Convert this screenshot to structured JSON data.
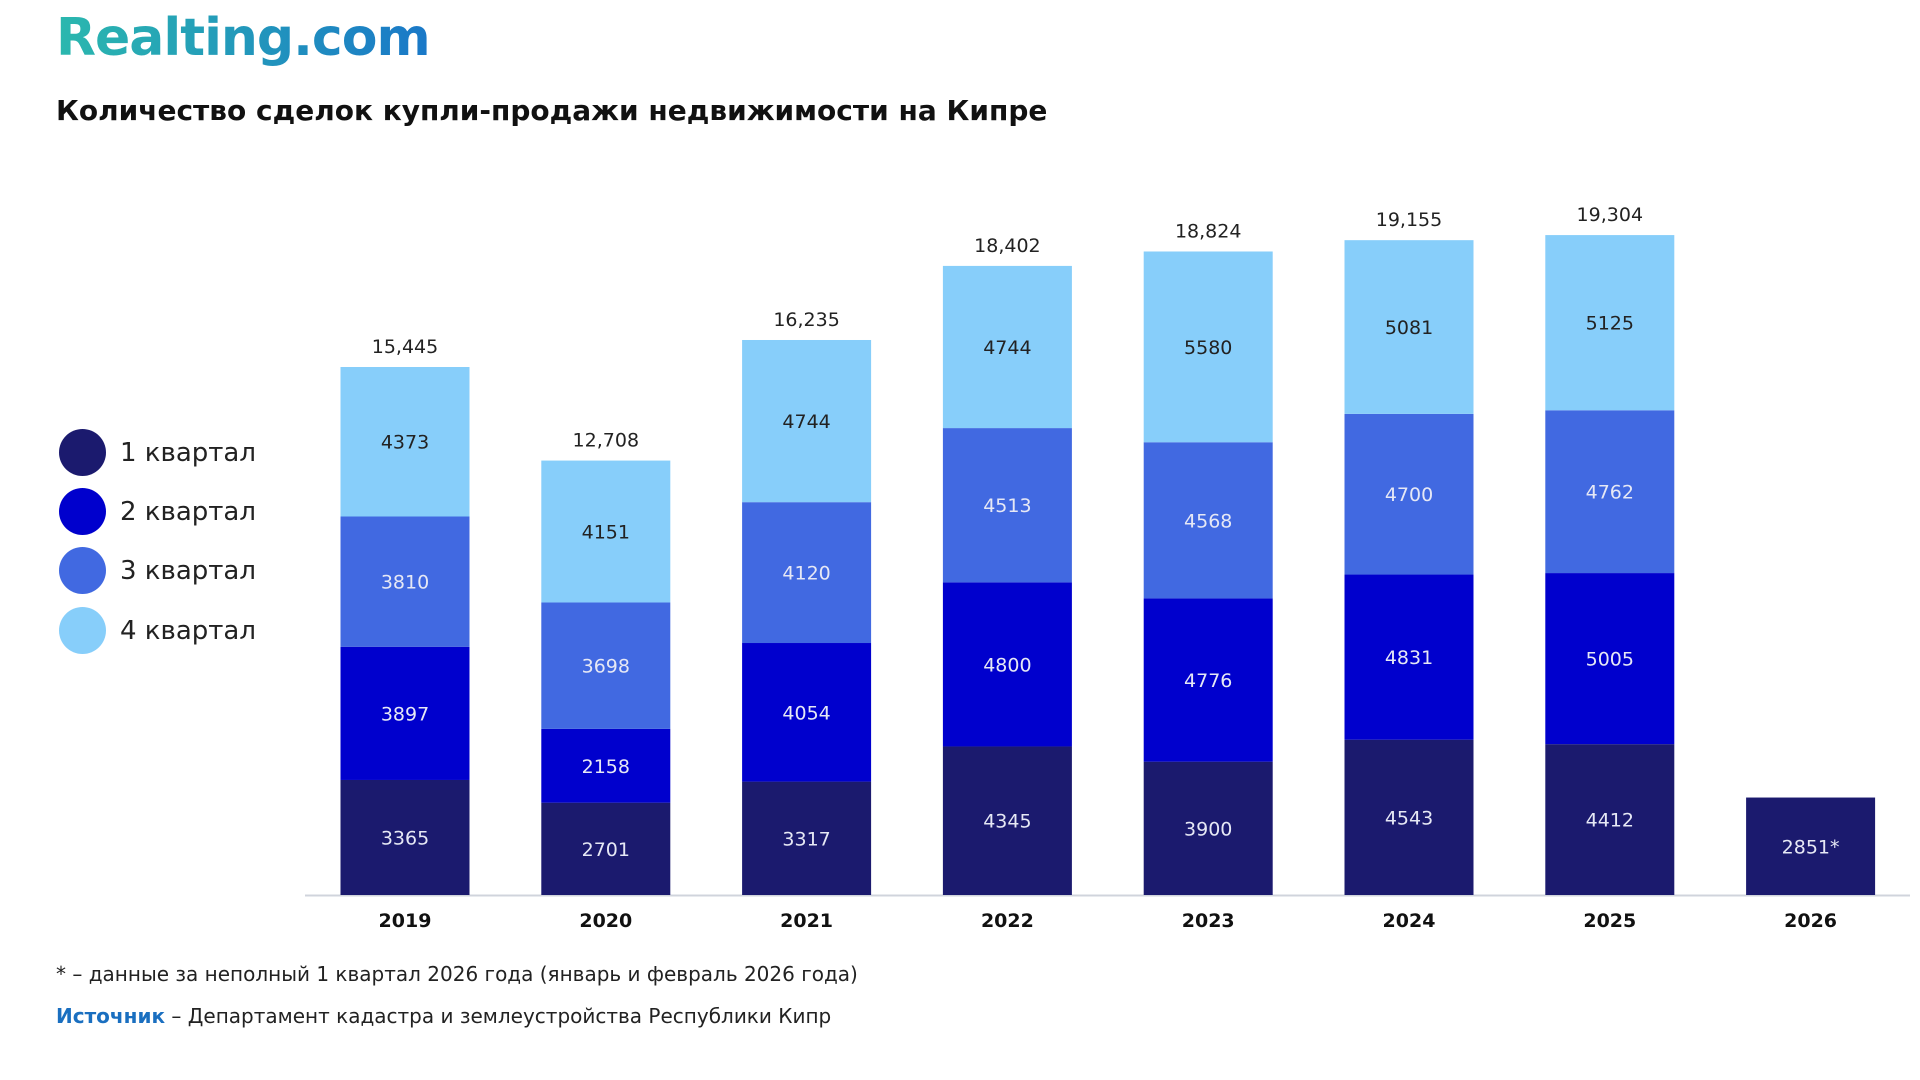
{
  "logo": "Realting.com",
  "chart_data": {
    "type": "bar",
    "stacked": true,
    "title": "Количество сделок купли-продажи недвижимости на Кипре",
    "categories": [
      "2019",
      "2020",
      "2021",
      "2022",
      "2023",
      "2024",
      "2025",
      "2026"
    ],
    "series": [
      {
        "name": "1 квартал",
        "color": "#1b1a6e",
        "values": [
          3365,
          2701,
          3317,
          4345,
          3900,
          4543,
          4412,
          2851
        ],
        "labels": [
          "3365",
          "2701",
          "3317",
          "4345",
          "3900",
          "4543",
          "4412",
          "2851*"
        ]
      },
      {
        "name": "2 квартал",
        "color": "#0000cd",
        "values": [
          3897,
          2158,
          4054,
          4800,
          4776,
          4831,
          5005,
          null
        ],
        "labels": [
          "3897",
          "2158",
          "4054",
          "4800",
          "4776",
          "4831",
          "5005",
          null
        ]
      },
      {
        "name": "3 квартал",
        "color": "#4169e1",
        "values": [
          3810,
          3698,
          4120,
          4513,
          4568,
          4700,
          4762,
          null
        ],
        "labels": [
          "3810",
          "3698",
          "4120",
          "4513",
          "4568",
          "4700",
          "4762",
          null
        ]
      },
      {
        "name": "4 квартал",
        "color": "#87cefa",
        "values": [
          4373,
          4151,
          4744,
          4744,
          5580,
          5081,
          5125,
          null
        ],
        "labels": [
          "4373",
          "4151",
          "4744",
          "4744",
          "5580",
          "5081",
          "5125",
          null
        ]
      }
    ],
    "totals": [
      "15,445",
      "12,708",
      "16,235",
      "18,402",
      "18,824",
      "19,155",
      "19,304",
      null
    ],
    "ylim": [
      0,
      20000
    ],
    "grid": false,
    "legend_position": "left"
  },
  "footnote": "* – данные за неполный 1 квартал 2026 года (январь и февраль 2026 года)",
  "source": {
    "label": "Источник",
    "text": " – Департамент кадастра и землеустройства Республики Кипр"
  }
}
